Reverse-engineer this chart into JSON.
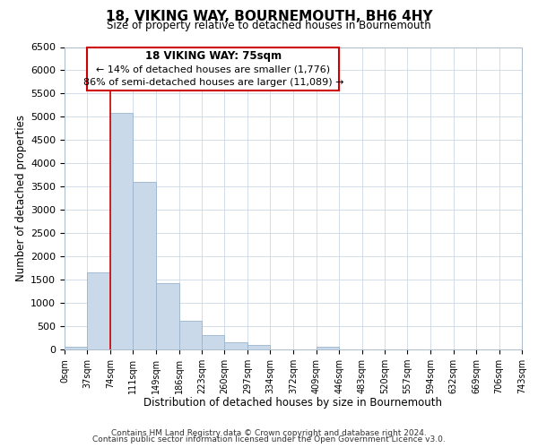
{
  "title": "18, VIKING WAY, BOURNEMOUTH, BH6 4HY",
  "subtitle": "Size of property relative to detached houses in Bournemouth",
  "xlabel": "Distribution of detached houses by size in Bournemouth",
  "ylabel": "Number of detached properties",
  "footer_line1": "Contains HM Land Registry data © Crown copyright and database right 2024.",
  "footer_line2": "Contains public sector information licensed under the Open Government Licence v3.0.",
  "bin_edges": [
    0,
    37,
    74,
    111,
    149,
    186,
    223,
    260,
    297,
    334,
    372,
    409,
    446,
    483,
    520,
    557,
    594,
    632,
    669,
    706,
    743
  ],
  "bin_labels": [
    "0sqm",
    "37sqm",
    "74sqm",
    "111sqm",
    "149sqm",
    "186sqm",
    "223sqm",
    "260sqm",
    "297sqm",
    "334sqm",
    "372sqm",
    "409sqm",
    "446sqm",
    "483sqm",
    "520sqm",
    "557sqm",
    "594sqm",
    "632sqm",
    "669sqm",
    "706sqm",
    "743sqm"
  ],
  "bar_values": [
    50,
    1650,
    5080,
    3600,
    1430,
    620,
    310,
    150,
    90,
    0,
    0,
    50,
    0,
    0,
    0,
    0,
    0,
    0,
    0,
    0
  ],
  "bar_color": "#c9d9e9",
  "bar_edge_color": "#9ab4cc",
  "property_line_x": 74,
  "property_line_color": "#cc0000",
  "annotation_box_color": "#cc0000",
  "annotation_title": "18 VIKING WAY: 75sqm",
  "annotation_line1": "← 14% of detached houses are smaller (1,776)",
  "annotation_line2": "86% of semi-detached houses are larger (11,089) →",
  "ylim": [
    0,
    6500
  ],
  "yticks": [
    0,
    500,
    1000,
    1500,
    2000,
    2500,
    3000,
    3500,
    4000,
    4500,
    5000,
    5500,
    6000,
    6500
  ],
  "bg_color": "#ffffff",
  "grid_color": "#ccd8e4"
}
